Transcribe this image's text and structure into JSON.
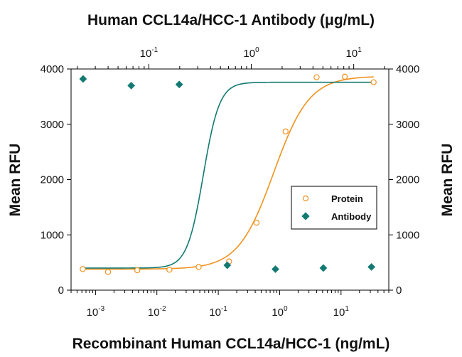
{
  "chart_data": {
    "type": "scatter",
    "title": "Human CCL14a/HCC-1 Antibody (μg/mL)",
    "xlabel": "Recombinant Human CCL14a/HCC-1 (ng/mL)",
    "ylabel_left": "Mean RFU",
    "ylabel_right": "Mean RFU",
    "x_scale": "log",
    "xlim": [
      0.0004,
      60
    ],
    "ylim": [
      0,
      4000
    ],
    "yticks": [
      "0",
      "1000",
      "2000",
      "3000",
      "4000"
    ],
    "bottom_ticks": [
      {
        "value": 0.001,
        "base": "10",
        "exp": "-3"
      },
      {
        "value": 0.01,
        "base": "10",
        "exp": "-2"
      },
      {
        "value": 0.1,
        "base": "10",
        "exp": "-1"
      },
      {
        "value": 1,
        "base": "10",
        "exp": "0"
      },
      {
        "value": 10,
        "base": "10",
        "exp": "1"
      }
    ],
    "top_axis": {
      "xlim": [
        0.0174,
        22
      ],
      "ticks": [
        {
          "value": 0.1,
          "base": "10",
          "exp": "-1"
        },
        {
          "value": 1,
          "base": "10",
          "exp": "0"
        },
        {
          "value": 10,
          "base": "10",
          "exp": "1"
        }
      ]
    },
    "legend_position": "center-right",
    "series": [
      {
        "name": "Protein",
        "marker": "open-circle",
        "color": "#F0921E",
        "axis": "bottom",
        "x": [
          0.00062,
          0.0016,
          0.0048,
          0.016,
          0.048,
          0.15,
          0.42,
          1.25,
          4,
          11.5,
          34
        ],
        "y": [
          380,
          330,
          360,
          370,
          420,
          520,
          1220,
          2870,
          3850,
          3860,
          3760
        ],
        "fit": {
          "bottom": 380,
          "top": 3870,
          "ec50": 0.8,
          "hill": 1.5
        }
      },
      {
        "name": "Antibody",
        "marker": "filled-diamond",
        "color": "#127A72",
        "axis": "top",
        "x": [
          0.0228,
          0.0673,
          0.198,
          0.583,
          1.72,
          5.05,
          14.9
        ],
        "y": [
          3820,
          3700,
          3720,
          450,
          380,
          400,
          420
        ],
        "fit": {
          "bottom": 400,
          "top": 3760,
          "ec50": 0.34,
          "hill": 5.5
        }
      }
    ]
  }
}
